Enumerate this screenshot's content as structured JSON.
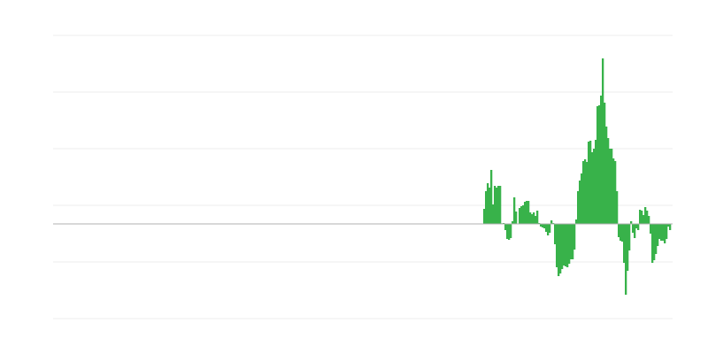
{
  "chart_data": {
    "type": "bar",
    "title": "",
    "xlabel": "",
    "ylabel": "",
    "grid": true,
    "legend": "none",
    "xlim": [
      -243,
      107
    ],
    "ylim": [
      -107,
      213
    ],
    "gridlines": [
      213,
      149,
      85,
      21,
      -43,
      -107
    ],
    "colors": {
      "bar": "#38b24a",
      "grid": "#ececec",
      "baseline": "#b0b0b0"
    },
    "values": [
      17,
      37,
      46,
      41,
      61,
      22,
      43,
      41,
      43,
      43,
      0.7,
      1,
      -7,
      -17,
      -18,
      -16,
      3,
      30,
      14,
      0,
      18,
      20,
      21,
      25,
      26,
      26,
      13,
      11,
      13,
      9,
      15,
      1,
      -3,
      -4,
      -5,
      -9,
      -13,
      -10,
      4,
      1,
      -23,
      -49,
      -59,
      -56,
      -51,
      -47,
      -48,
      -49,
      -45,
      -40,
      -40,
      -29,
      5,
      37,
      49,
      57,
      71,
      73,
      70,
      93,
      94,
      81,
      85,
      95,
      133,
      134,
      145,
      187,
      137,
      110,
      97,
      85,
      85,
      74,
      71,
      37,
      -15,
      -19,
      -20,
      -44,
      -80,
      -53,
      -30,
      3,
      -10,
      -16,
      -5,
      -7,
      16,
      15,
      10,
      19,
      15,
      9,
      -11,
      -44,
      -41,
      -34,
      -25,
      -17,
      -19,
      -19,
      -22,
      -17,
      -3,
      -7
    ]
  }
}
